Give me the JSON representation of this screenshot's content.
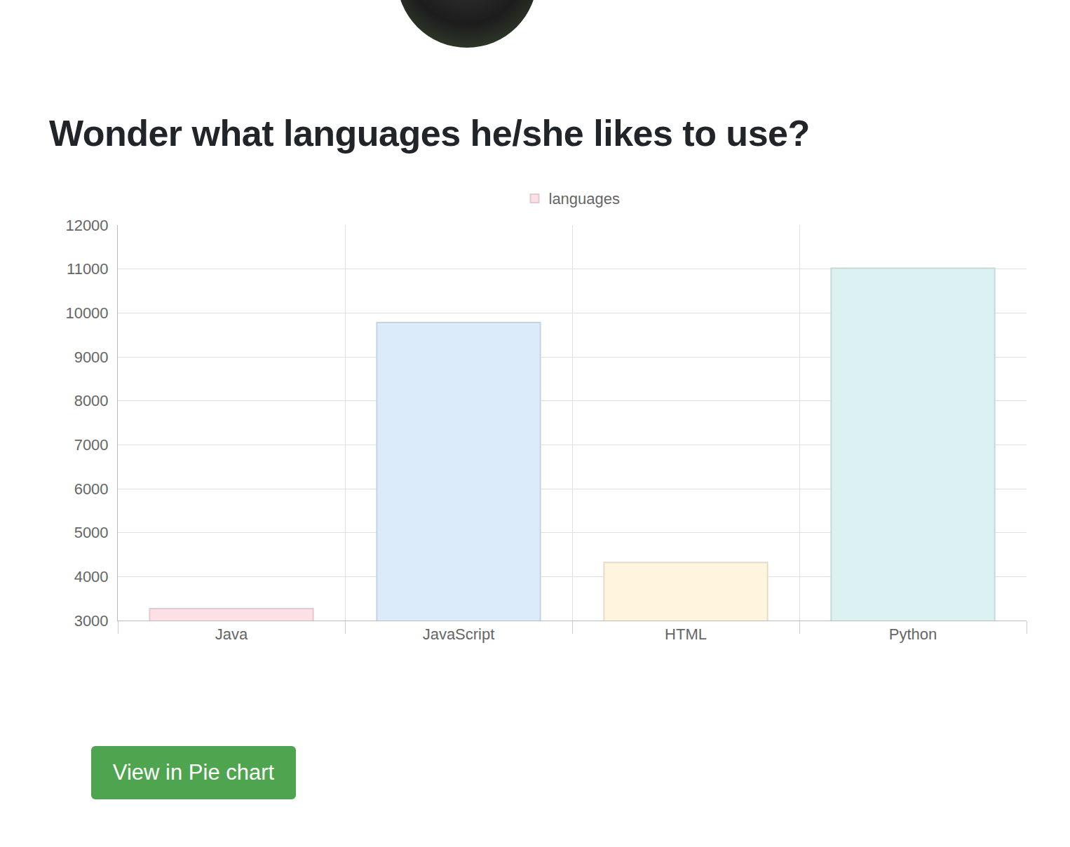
{
  "chart_data": {
    "type": "bar",
    "title": "Wonder what languages he/she likes to use?",
    "categories": [
      "Java",
      "JavaScript",
      "HTML",
      "Python"
    ],
    "series": [
      {
        "name": "languages",
        "values": [
          3270,
          9780,
          4320,
          11020
        ],
        "colors": [
          "#fde0e6",
          "#dbebf9",
          "#fff4de",
          "#dcf1f1"
        ]
      }
    ],
    "ylim": [
      3000,
      12000
    ],
    "yticks": [
      3000,
      4000,
      5000,
      6000,
      7000,
      8000,
      9000,
      10000,
      11000,
      12000
    ],
    "grid": true,
    "legend": "top"
  },
  "page": {
    "button": "View in Pie chart"
  }
}
